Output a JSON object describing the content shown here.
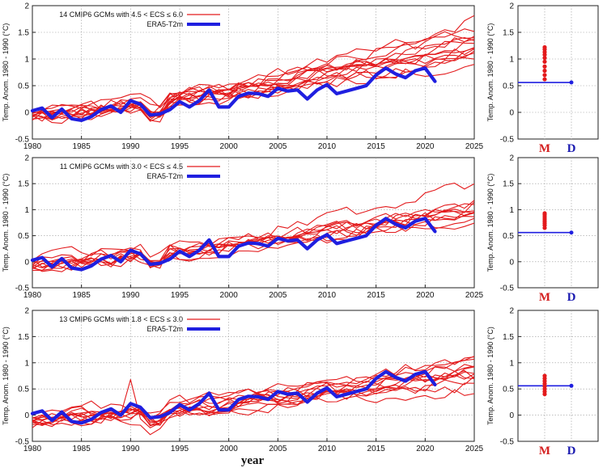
{
  "figure": {
    "xlabel": "year",
    "ylabel": "Temp. Anom. 1980 - 1990 (°C)"
  },
  "colors": {
    "models": "#e31a1c",
    "observed": "#1f1fe0",
    "M_label": "#d42020",
    "D_label": "#1a1ab0",
    "grid": "#9a9a9a"
  },
  "chart_data": [
    {
      "type": "line",
      "legend": {
        "models": "14 CMIP6 GCMs with 4.5 < ECS ≤ 6.0",
        "observed": "ERA5-T2m"
      },
      "xlim": [
        1980,
        2025
      ],
      "ylim": [
        -0.5,
        2
      ],
      "xticks": [
        1980,
        1985,
        1990,
        1995,
        2000,
        2005,
        2010,
        2015,
        2020,
        2025
      ],
      "yticks": [
        -0.5,
        0,
        0.5,
        1,
        1.5,
        2
      ],
      "ensemble": {
        "count": 14,
        "start_spread": [
          -0.15,
          0.15
        ],
        "end_values_2025": [
          0.95,
          1.0,
          1.05,
          1.1,
          1.15,
          1.2,
          1.25,
          1.3,
          1.35,
          1.4,
          1.45,
          1.5,
          1.6,
          1.7
        ]
      },
      "side_panel": {
        "categories": [
          "M",
          "D"
        ],
        "ylim": [
          -0.5,
          2
        ],
        "yticks": [
          -0.5,
          0,
          0.5,
          1,
          1.5,
          2
        ],
        "model_values": [
          0.62,
          0.7,
          0.78,
          0.86,
          0.95,
          1.02,
          1.08,
          1.13,
          1.18,
          1.22
        ],
        "observed_value": 0.56
      }
    },
    {
      "type": "line",
      "legend": {
        "models": "11 CMIP6 GCMs with 3.0 < ECS ≤ 4.5",
        "observed": "ERA5-T2m"
      },
      "xlim": [
        1980,
        2025
      ],
      "ylim": [
        -0.5,
        2
      ],
      "xticks": [
        1980,
        1985,
        1990,
        1995,
        2000,
        2005,
        2010,
        2015,
        2020,
        2025
      ],
      "yticks": [
        -0.5,
        0,
        0.5,
        1,
        1.5,
        2
      ],
      "ensemble": {
        "count": 11,
        "start_spread": [
          -0.15,
          0.12
        ],
        "end_values_2025": [
          0.8,
          0.85,
          0.9,
          0.95,
          1.0,
          1.02,
          1.05,
          1.08,
          1.1,
          1.15,
          1.5
        ]
      },
      "side_panel": {
        "categories": [
          "M",
          "D"
        ],
        "ylim": [
          -0.5,
          2
        ],
        "yticks": [
          -0.5,
          0,
          0.5,
          1,
          1.5,
          2
        ],
        "model_values": [
          0.65,
          0.7,
          0.74,
          0.78,
          0.82,
          0.86,
          0.9,
          0.93
        ],
        "observed_value": 0.56
      }
    },
    {
      "type": "line",
      "legend": {
        "models": "13 CMIP6 GCMs with 1.8 < ECS ≤ 3.0",
        "observed": "ERA5-T2m"
      },
      "xlim": [
        1980,
        2025
      ],
      "ylim": [
        -0.5,
        2
      ],
      "xticks": [
        1980,
        1985,
        1990,
        1995,
        2000,
        2005,
        2010,
        2015,
        2020,
        2025
      ],
      "yticks": [
        -0.5,
        0,
        0.5,
        1,
        1.5,
        2
      ],
      "ensemble": {
        "count": 13,
        "start_spread": [
          -0.15,
          0.12
        ],
        "end_values_2025": [
          0.45,
          0.55,
          0.65,
          0.7,
          0.75,
          0.78,
          0.8,
          0.85,
          0.9,
          0.95,
          1.0,
          1.05,
          1.12
        ]
      },
      "side_panel": {
        "categories": [
          "M",
          "D"
        ],
        "ylim": [
          -0.5,
          2
        ],
        "yticks": [
          -0.5,
          0,
          0.5,
          1,
          1.5,
          2
        ],
        "model_values": [
          0.4,
          0.45,
          0.5,
          0.55,
          0.6,
          0.65,
          0.7,
          0.75
        ],
        "observed_value": 0.56
      }
    }
  ],
  "observed_series": {
    "name": "ERA5-T2m",
    "x": [
      1980,
      1981,
      1982,
      1983,
      1984,
      1985,
      1986,
      1987,
      1988,
      1989,
      1990,
      1991,
      1992,
      1993,
      1994,
      1995,
      1996,
      1997,
      1998,
      1999,
      2000,
      2001,
      2002,
      2003,
      2004,
      2005,
      2006,
      2007,
      2008,
      2009,
      2010,
      2011,
      2012,
      2013,
      2014,
      2015,
      2016,
      2017,
      2018,
      2019,
      2020,
      2021
    ],
    "y": [
      0.03,
      0.08,
      -0.1,
      0.06,
      -0.12,
      -0.15,
      -0.08,
      0.05,
      0.12,
      0.0,
      0.22,
      0.15,
      -0.05,
      -0.03,
      0.05,
      0.2,
      0.1,
      0.22,
      0.42,
      0.1,
      0.1,
      0.3,
      0.36,
      0.35,
      0.3,
      0.45,
      0.4,
      0.42,
      0.25,
      0.42,
      0.52,
      0.35,
      0.4,
      0.45,
      0.5,
      0.7,
      0.83,
      0.72,
      0.65,
      0.78,
      0.83,
      0.58
    ]
  }
}
